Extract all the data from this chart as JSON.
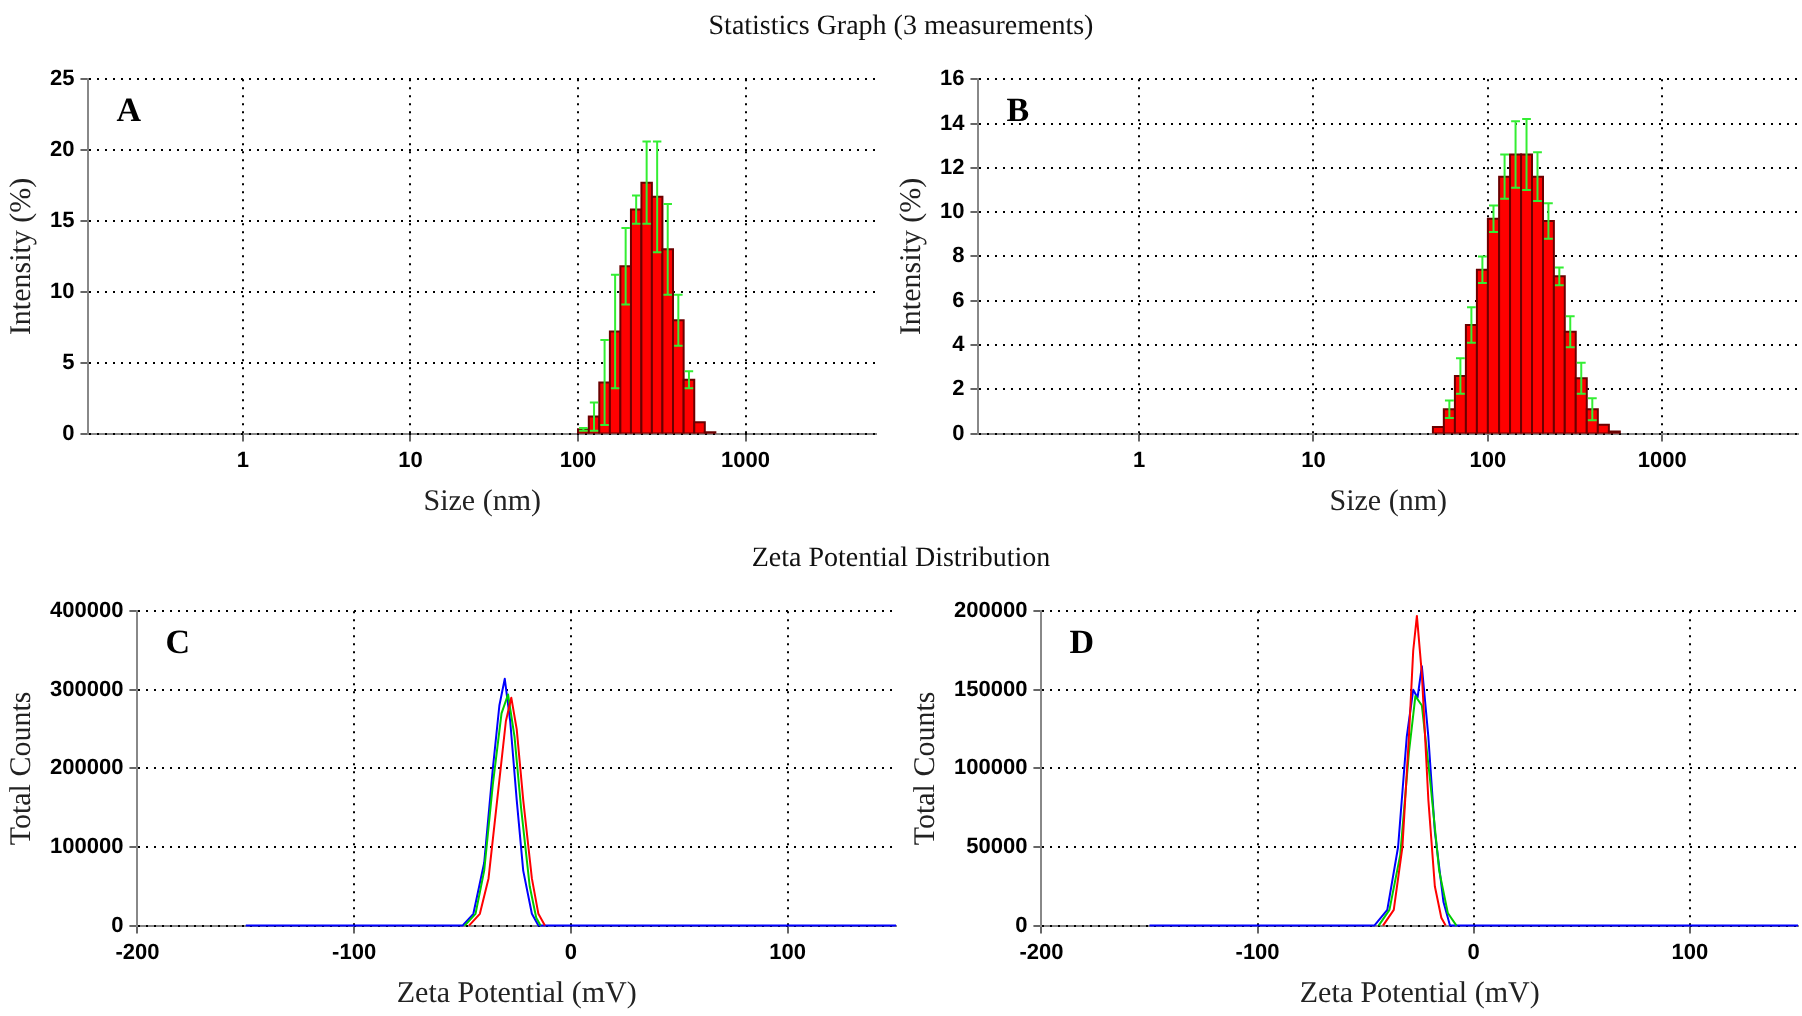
{
  "chart_data": [
    {
      "type": "histogram",
      "title": "Statistics Graph (3 measurements)",
      "xlabel": "Size (nm)",
      "ylabel": "Intensity (%)",
      "annotations": [
        "A"
      ],
      "log": "x",
      "grid": true,
      "color": "#ff0000",
      "bins": [
        100,
        116,
        134,
        155,
        179,
        207,
        239,
        276,
        319,
        369,
        427,
        494,
        571,
        660
      ],
      "values": [
        0.3,
        1.2,
        3.6,
        7.2,
        11.8,
        15.8,
        17.7,
        16.7,
        13.0,
        8.0,
        3.8,
        0.8,
        0.1
      ],
      "errors": [
        0.1,
        1.0,
        3.0,
        4.0,
        2.7,
        1.0,
        2.9,
        3.9,
        3.2,
        1.8,
        0.6,
        null,
        null
      ],
      "xlim": [
        0.12,
        6000
      ],
      "xticks": [
        1,
        10,
        100,
        1000
      ],
      "ylim": [
        0,
        25
      ],
      "yticks": [
        0,
        5,
        10,
        15,
        20,
        25
      ]
    },
    {
      "type": "histogram",
      "xlabel": "Size (nm)",
      "ylabel": "Intensity (%)",
      "annotations": [
        "B"
      ],
      "log": "x",
      "grid": true,
      "color": "#ff0000",
      "bins": [
        48.4,
        55.9,
        64.7,
        74.8,
        86.5,
        100,
        116,
        134,
        155,
        179,
        207,
        239,
        276,
        319,
        369,
        427,
        494,
        571
      ],
      "values": [
        0.3,
        1.1,
        2.6,
        4.9,
        7.4,
        9.7,
        11.6,
        12.6,
        12.6,
        11.6,
        9.6,
        7.1,
        4.6,
        2.5,
        1.1,
        0.4,
        0.1
      ],
      "errors": [
        null,
        0.4,
        0.8,
        0.8,
        0.6,
        0.6,
        1.0,
        1.5,
        1.6,
        1.1,
        0.8,
        0.4,
        0.7,
        0.7,
        0.5,
        null,
        null
      ],
      "xlim": [
        0.12,
        6000
      ],
      "xticks": [
        1,
        10,
        100,
        1000
      ],
      "ylim": [
        0,
        16
      ],
      "yticks": [
        0,
        2,
        4,
        6,
        8,
        10,
        12,
        14,
        16
      ]
    },
    {
      "type": "line",
      "title": "Zeta Potential Distribution",
      "xlabel": "Zeta Potential (mV)",
      "ylabel": "Total Counts",
      "annotations": [
        "C"
      ],
      "grid": true,
      "xlim": [
        -200,
        150
      ],
      "xticks": [
        -200,
        -100,
        0,
        100
      ],
      "ylim": [
        0,
        400000
      ],
      "yticks": [
        0,
        100000,
        200000,
        300000,
        400000
      ],
      "series": [
        {
          "color": "#ff0000",
          "x": [
            -47,
            -42,
            -38,
            -34,
            -30,
            -27.5,
            -25,
            -22,
            -18,
            -15,
            -12
          ],
          "values": [
            0,
            15000,
            60000,
            160000,
            260000,
            290000,
            250000,
            160000,
            60000,
            15000,
            0
          ]
        },
        {
          "color": "#00cc00",
          "x": [
            -49,
            -44,
            -40,
            -36,
            -32,
            -29,
            -26,
            -23,
            -19,
            -16,
            -14
          ],
          "values": [
            0,
            15000,
            70000,
            180000,
            270000,
            294000,
            240000,
            150000,
            50000,
            10000,
            0
          ]
        },
        {
          "color": "#0000ff",
          "x": [
            -150,
            -50,
            -45,
            -40,
            -36,
            -33,
            -30.5,
            -28,
            -25,
            -22,
            -18,
            -15,
            150
          ],
          "values": [
            0,
            0,
            15000,
            80000,
            200000,
            280000,
            314000,
            260000,
            160000,
            70000,
            15000,
            0,
            0
          ]
        }
      ]
    },
    {
      "type": "line",
      "xlabel": "Zeta Potential (mV)",
      "ylabel": "Total Counts",
      "annotations": [
        "D"
      ],
      "grid": true,
      "xlim": [
        -200,
        150
      ],
      "xticks": [
        -200,
        -100,
        0,
        100
      ],
      "ylim": [
        0,
        200000
      ],
      "yticks": [
        0,
        50000,
        100000,
        150000,
        200000
      ],
      "series": [
        {
          "color": "#ff0000",
          "x": [
            -42,
            -37,
            -33,
            -30,
            -28,
            -26.3,
            -24,
            -21,
            -18,
            -15,
            -13
          ],
          "values": [
            0,
            10000,
            50000,
            120000,
            175000,
            197000,
            160000,
            80000,
            25000,
            5000,
            0
          ]
        },
        {
          "color": "#00cc00",
          "x": [
            -44,
            -39,
            -34,
            -30,
            -27,
            -24,
            -20,
            -16,
            -12,
            -8
          ],
          "values": [
            0,
            10000,
            45000,
            110000,
            146000,
            140000,
            90000,
            35000,
            8000,
            0
          ]
        },
        {
          "color": "#0000ff",
          "x": [
            -150,
            -46,
            -40,
            -35,
            -31,
            -28,
            -26,
            -24,
            -21,
            -18,
            -14,
            -11,
            150
          ],
          "values": [
            0,
            0,
            10000,
            50000,
            120000,
            150000,
            145000,
            165000,
            120000,
            60000,
            15000,
            0,
            0
          ]
        }
      ]
    }
  ]
}
